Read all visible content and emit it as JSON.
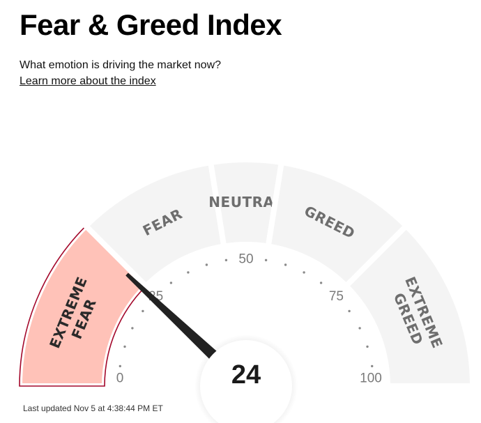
{
  "header": {
    "title": "Fear & Greed Index",
    "subtitle": "What emotion is driving the market now?",
    "learn_more_link": "Learn more about the index"
  },
  "gauge": {
    "value": 24,
    "min": 0,
    "max": 100,
    "active_segment": "extreme-fear",
    "segments": [
      {
        "id": "extreme-fear",
        "lines": [
          "EXTREME",
          "FEAR"
        ],
        "from": 0,
        "to": 25
      },
      {
        "id": "fear",
        "lines": [
          "FEAR"
        ],
        "from": 25,
        "to": 45
      },
      {
        "id": "neutral",
        "lines": [
          "NEUTRAL"
        ],
        "from": 45,
        "to": 55
      },
      {
        "id": "greed",
        "lines": [
          "GREED"
        ],
        "from": 55,
        "to": 75
      },
      {
        "id": "extreme-greed",
        "lines": [
          "EXTREME",
          "GREED"
        ],
        "from": 75,
        "to": 100
      }
    ],
    "tick_labels": [
      "0",
      "25",
      "50",
      "75",
      "100"
    ],
    "colors": {
      "segment_inactive": "#f4f4f4",
      "segment_active": "#ffc2b8",
      "active_border": "#a3072a",
      "segment_text": "#6e6e6e",
      "needle": "#222222",
      "tick_dot": "#8a8a8a",
      "tick_label": "#7a7a7a"
    }
  },
  "footer": {
    "last_updated": "Last updated Nov 5 at 4:38:44 PM ET"
  }
}
